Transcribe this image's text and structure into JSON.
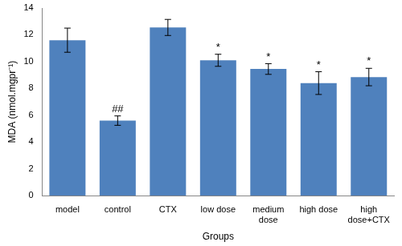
{
  "chart_data": {
    "type": "bar",
    "y_label": "MDA (nmol.mgpr⁻¹)",
    "x_label": "Groups",
    "categories": [
      "model",
      "control",
      "CTX",
      "low dose",
      "medium dose",
      "high dose",
      "high dose+CTX"
    ],
    "values": [
      11.6,
      5.6,
      12.55,
      10.1,
      9.45,
      8.4,
      8.85
    ],
    "errors": [
      0.9,
      0.35,
      0.6,
      0.45,
      0.4,
      0.85,
      0.65
    ],
    "annotations": [
      {
        "category": "control",
        "text": "##"
      },
      {
        "category": "low dose",
        "text": "*"
      },
      {
        "category": "medium dose",
        "text": "*"
      },
      {
        "category": "high dose",
        "text": "*"
      },
      {
        "category": "high dose+CTX",
        "text": "*"
      }
    ],
    "color": "#4f81bd",
    "ylim": [
      0,
      14
    ],
    "yticks": [
      0,
      2,
      4,
      6,
      8,
      10,
      12,
      14
    ],
    "grid": false
  }
}
